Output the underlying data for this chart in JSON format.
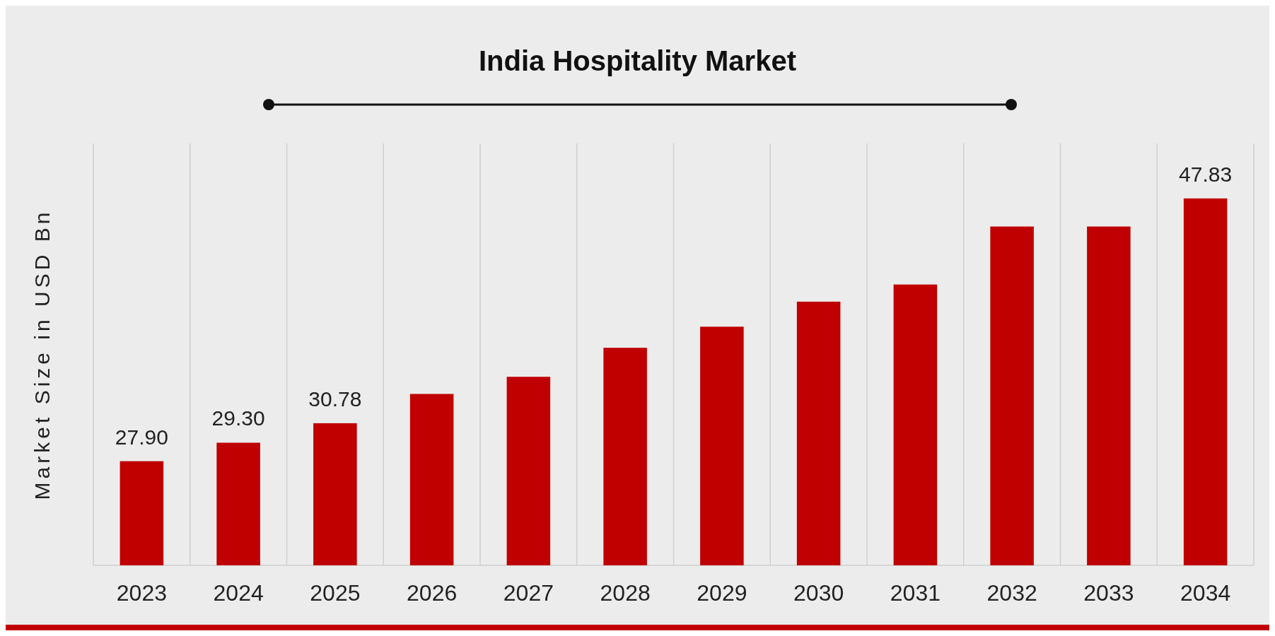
{
  "chart_data": {
    "type": "bar",
    "title": "India Hospitality Market",
    "ylabel": "Market Size in USD Bn",
    "ylim": [
      20,
      52
    ],
    "tick_labels": "x",
    "grid": "x",
    "categories": [
      "2023",
      "2024",
      "2025",
      "2026",
      "2027",
      "2028",
      "2029",
      "2030",
      "2031",
      "2032",
      "2033",
      "2034"
    ],
    "values": [
      27.9,
      29.3,
      30.78,
      33.0,
      34.3,
      36.5,
      38.1,
      40.0,
      41.3,
      45.7,
      45.7,
      47.83
    ],
    "value_labels": [
      "27.90",
      "29.30",
      "30.78",
      null,
      null,
      null,
      null,
      null,
      null,
      null,
      null,
      "47.83"
    ],
    "color": "#c00000"
  }
}
